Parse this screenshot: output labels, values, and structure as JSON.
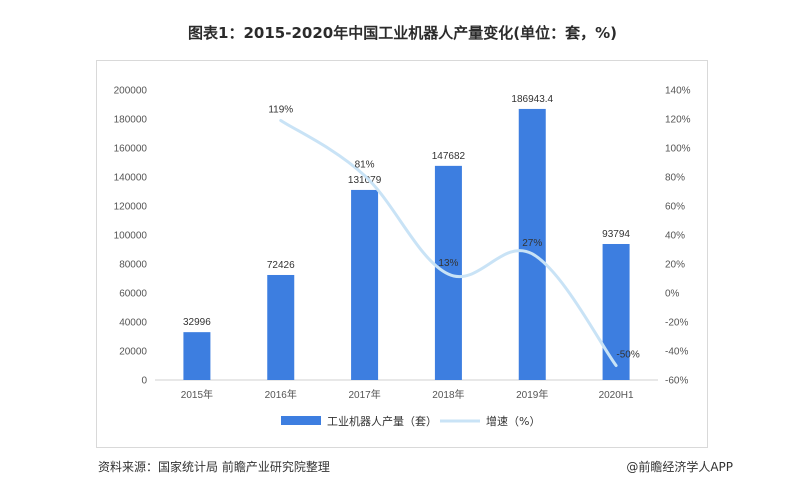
{
  "title": "图表1：2015-2020年中国工业机器人产量变化(单位：套，%)",
  "source": "资料来源：国家统计局 前瞻产业研究院整理",
  "brand": "@前瞻经济学人APP",
  "colors": {
    "bar": "#3d7ee0",
    "line": "#c9e3f6"
  },
  "chart_data": {
    "type": "bar",
    "categories": [
      "2015年",
      "2016年",
      "2017年",
      "2018年",
      "2019年",
      "2020H1"
    ],
    "series": [
      {
        "name": "工业机器人产量（套）",
        "type": "bar",
        "axis": "left",
        "values": [
          32996,
          72426,
          131079,
          147682,
          186943.4,
          93794
        ],
        "labels": [
          "32996",
          "72426",
          "131079",
          "147682",
          "186943.4",
          "93794"
        ]
      },
      {
        "name": "增速（%）",
        "type": "line",
        "axis": "right",
        "values": [
          null,
          119,
          81,
          13,
          27,
          -50
        ],
        "labels": [
          "",
          "119%",
          "81%",
          "13%",
          "27%",
          "-50%"
        ]
      }
    ],
    "y_left": {
      "min": 0,
      "max": 200000,
      "step": 20000,
      "ticks": [
        "0",
        "20000",
        "40000",
        "60000",
        "80000",
        "100000",
        "120000",
        "140000",
        "160000",
        "180000",
        "200000"
      ]
    },
    "y_right": {
      "min": -60,
      "max": 140,
      "step": 20,
      "ticks": [
        "-60%",
        "-40%",
        "-20%",
        "0%",
        "20%",
        "40%",
        "60%",
        "80%",
        "100%",
        "120%",
        "140%"
      ]
    },
    "legend_position": "bottom",
    "grid": false
  }
}
